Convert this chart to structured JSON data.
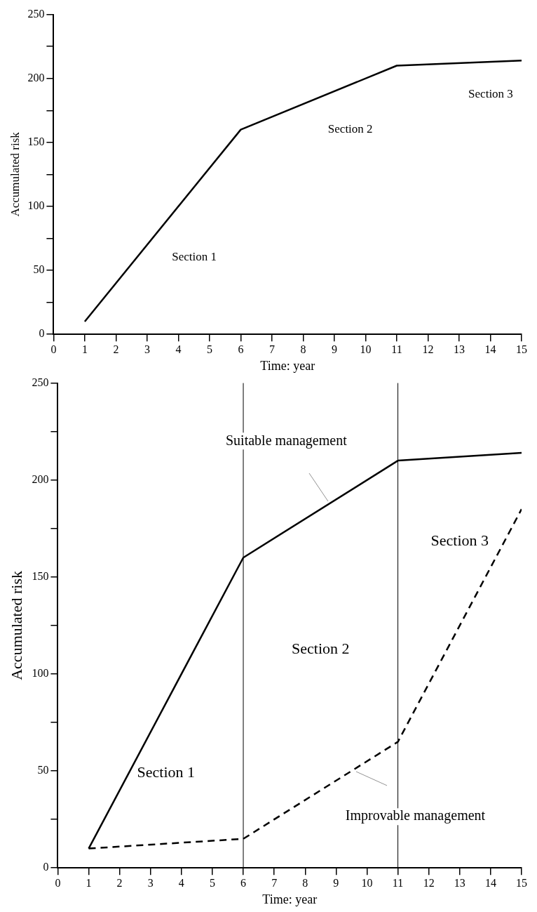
{
  "chart_data": [
    {
      "type": "line",
      "xlabel": "Time: year",
      "ylabel": "Accumulated risk",
      "x": [
        1,
        6,
        11,
        15
      ],
      "series": [
        {
          "color": "#000000",
          "values": [
            10,
            160,
            210,
            214
          ],
          "line_style": "solid"
        }
      ],
      "xlim": [
        0,
        15
      ],
      "xticks": [
        0,
        1,
        2,
        3,
        4,
        5,
        6,
        7,
        8,
        9,
        10,
        11,
        12,
        13,
        14,
        15
      ],
      "ylim": [
        0,
        250
      ],
      "yticks": [
        0,
        {
          "value": 25,
          "label": null
        },
        50,
        {
          "value": 75,
          "label": null
        },
        100,
        {
          "value": 125,
          "label": null
        },
        150,
        {
          "value": 175,
          "label": null
        },
        200,
        {
          "value": 225,
          "label": null
        },
        250
      ],
      "grid": false,
      "legend": false,
      "marker": "none",
      "annotations": [
        "Section 1",
        "Section 2",
        "Section 3"
      ]
    },
    {
      "type": "line",
      "xlabel": "Time: year",
      "ylabel": "Accumulated risk",
      "x": [
        1,
        6,
        11,
        15
      ],
      "series": [
        {
          "name": "Suitable management",
          "color": "#000000",
          "values": [
            10,
            160,
            210,
            214
          ],
          "line_style": "solid"
        },
        {
          "name": "Improvable management",
          "color": "#000000",
          "values": [
            10,
            15,
            65,
            185
          ],
          "line_style": "dashed"
        }
      ],
      "xlim": [
        0,
        15
      ],
      "xticks": [
        0,
        1,
        2,
        3,
        4,
        5,
        6,
        7,
        8,
        9,
        10,
        11,
        12,
        13,
        14,
        15
      ],
      "ylim": [
        0,
        250
      ],
      "yticks": [
        0,
        {
          "value": 25,
          "label": null
        },
        50,
        {
          "value": 75,
          "label": null
        },
        100,
        {
          "value": 125,
          "label": null
        },
        150,
        {
          "value": 175,
          "label": null
        },
        200,
        {
          "value": 225,
          "label": null
        },
        250
      ],
      "grid": false,
      "legend": false,
      "marker": "none",
      "ref_lines": [
        {
          "axis": "x",
          "value": 6,
          "color": "#000000"
        },
        {
          "axis": "x",
          "value": 11,
          "color": "#000000"
        }
      ],
      "annotations": [
        "Section 1",
        "Section 2",
        "Section 3"
      ]
    }
  ]
}
